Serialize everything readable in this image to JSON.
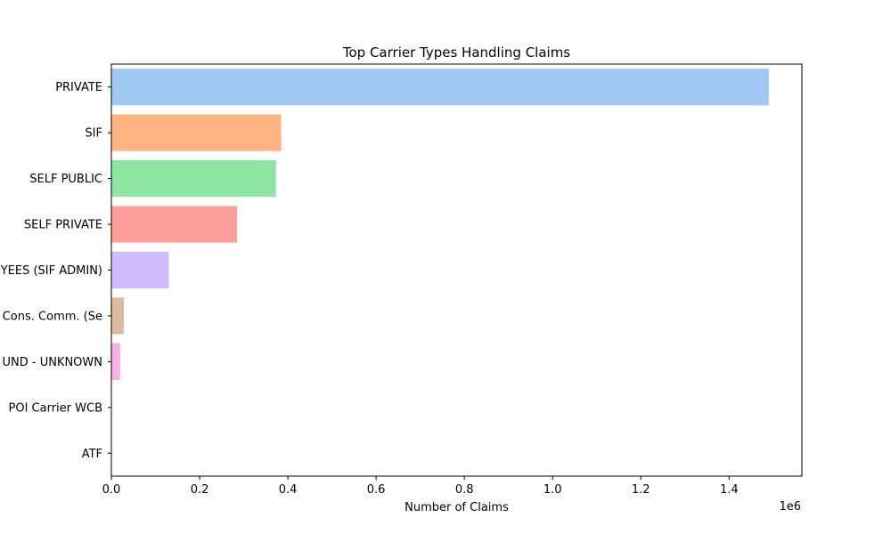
{
  "chart_data": {
    "type": "bar",
    "orientation": "horizontal",
    "title": "Top Carrier Types Handling Claims",
    "xlabel": "Number of Claims",
    "ylabel": "",
    "x_offset_label": "1e6",
    "xlim": [
      0,
      1.565
    ],
    "xticks": [
      0,
      0.2,
      0.4,
      0.6,
      0.8,
      1.0,
      1.2,
      1.4
    ],
    "xtick_labels": [
      "0.0",
      "0.2",
      "0.4",
      "0.6",
      "0.8",
      "1.0",
      "1.2",
      "1.4"
    ],
    "grid": false,
    "categories": [
      "PRIVATE",
      "SIF",
      "SELF PUBLIC",
      "SELF PRIVATE",
      "YEES (SIF ADMIN)",
      "Cons. Comm. (Se",
      "UND - UNKNOWN",
      "POI Carrier WCB",
      "ATF"
    ],
    "values": [
      1.49,
      0.385,
      0.373,
      0.285,
      0.13,
      0.028,
      0.02,
      0.0006,
      0.0003
    ],
    "colors": [
      "#a1c9f4",
      "#ffb482",
      "#8de5a1",
      "#ff9f9b",
      "#d0bbff",
      "#debb9b",
      "#fab0e4",
      "#cfcfcf",
      "#fffea3"
    ]
  }
}
